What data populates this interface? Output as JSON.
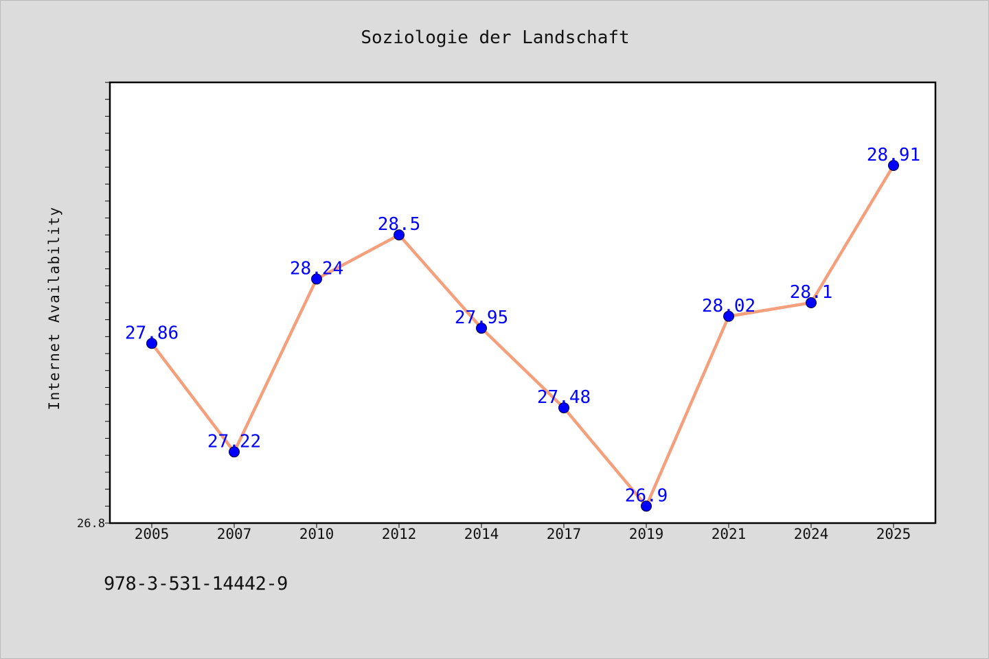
{
  "chart_data": {
    "type": "line",
    "title": "Soziologie der Landschaft",
    "xlabel": "",
    "ylabel": "Internet Availability",
    "categories": [
      "2005",
      "2007",
      "2010",
      "2012",
      "2014",
      "2017",
      "2019",
      "2021",
      "2024",
      "2025"
    ],
    "series": [
      {
        "values": [
          27.86,
          27.22,
          28.24,
          28.5,
          27.95,
          27.48,
          26.9,
          28.02,
          28.1,
          28.91
        ],
        "data_labels": [
          "27.86",
          "27.22",
          "28.24",
          "28.5",
          "27.95",
          "27.48",
          "26.9",
          "28.02",
          "28.1",
          "28.91"
        ]
      }
    ],
    "ylim": [
      26.8,
      29.4
    ],
    "y_tick_label": "26.8",
    "y_minor_step": 0.1,
    "grid": false,
    "legend": "none",
    "colors": {
      "line": "#f4a07c",
      "marker": "#0000ff",
      "data_label": "#0000ff",
      "background": "#dcdcdc",
      "plot_area": "#ffffff"
    }
  },
  "footer": {
    "isbn": "978-3-531-14442-9"
  }
}
